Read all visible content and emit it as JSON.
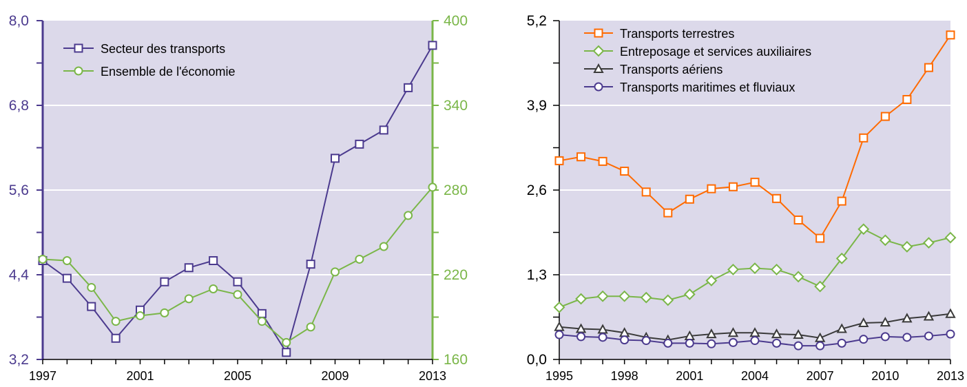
{
  "chart_data": [
    {
      "type": "line",
      "title": "",
      "xlabel": "",
      "x": [
        1997,
        1998,
        1999,
        2000,
        2001,
        2002,
        2003,
        2004,
        2005,
        2006,
        2007,
        2008,
        2009,
        2010,
        2011,
        2012,
        2013
      ],
      "x_ticks": [
        "1997",
        "2001",
        "2005",
        "2009",
        "2013"
      ],
      "ylim_left": [
        3.2,
        8.0
      ],
      "ylim_right": [
        160,
        400
      ],
      "y_ticks_left": [
        "3,2",
        "4,4",
        "5,6",
        "6,8",
        "8,0"
      ],
      "y_ticks_right": [
        "160",
        "220",
        "280",
        "340",
        "400"
      ],
      "axis_colors": {
        "left": "#4b3a8e",
        "right": "#7ab648"
      },
      "background": "#dcd9ea",
      "grid": true,
      "legend_position": "top-left",
      "series": [
        {
          "name": "Secteur des transports",
          "axis": "left",
          "marker": "square",
          "color": "#4b3a8e",
          "values": [
            4.6,
            4.35,
            3.95,
            3.5,
            3.9,
            4.3,
            4.5,
            4.6,
            4.3,
            3.85,
            3.3,
            4.55,
            6.05,
            6.25,
            6.45,
            7.05,
            7.65
          ]
        },
        {
          "name": "Ensemble de l'économie",
          "axis": "right",
          "marker": "circle",
          "color": "#7ab648",
          "values": [
            231,
            230,
            211,
            187,
            191,
            193,
            203,
            210,
            206,
            187,
            172,
            183,
            222,
            231,
            240,
            262,
            282
          ]
        }
      ]
    },
    {
      "type": "line",
      "title": "",
      "xlabel": "",
      "x": [
        1995,
        1996,
        1997,
        1998,
        1999,
        2000,
        2001,
        2002,
        2003,
        2004,
        2005,
        2006,
        2007,
        2008,
        2009,
        2010,
        2011,
        2012,
        2013
      ],
      "x_ticks": [
        "1995",
        "1998",
        "2001",
        "2004",
        "2007",
        "2010",
        "2013"
      ],
      "ylim": [
        0,
        5.2
      ],
      "y_ticks": [
        "0,0",
        "1,3",
        "2,6",
        "3,9",
        "5,2"
      ],
      "background": "#dcd9ea",
      "grid": true,
      "legend_position": "top-left",
      "series": [
        {
          "name": "Transports terrestres",
          "marker": "square",
          "color": "#ff6a00",
          "values": [
            3.05,
            3.11,
            3.04,
            2.89,
            2.57,
            2.25,
            2.46,
            2.62,
            2.65,
            2.72,
            2.47,
            2.14,
            1.86,
            2.43,
            3.4,
            3.73,
            3.99,
            4.48,
            4.98
          ]
        },
        {
          "name": "Entreposage et services auxiliaires",
          "marker": "diamond",
          "color": "#7ab648",
          "values": [
            0.8,
            0.93,
            0.97,
            0.97,
            0.95,
            0.91,
            1.0,
            1.21,
            1.38,
            1.4,
            1.38,
            1.27,
            1.12,
            1.55,
            2.0,
            1.83,
            1.73,
            1.79,
            1.87
          ]
        },
        {
          "name": "Transports aériens",
          "marker": "triangle",
          "color": "#3a3a3a",
          "values": [
            0.5,
            0.47,
            0.46,
            0.41,
            0.34,
            0.3,
            0.36,
            0.39,
            0.41,
            0.41,
            0.39,
            0.38,
            0.33,
            0.47,
            0.56,
            0.57,
            0.63,
            0.66,
            0.7
          ]
        },
        {
          "name": "Transports maritimes et fluviaux",
          "marker": "circle",
          "color": "#4b3a8e",
          "values": [
            0.38,
            0.35,
            0.34,
            0.3,
            0.29,
            0.25,
            0.25,
            0.24,
            0.26,
            0.29,
            0.25,
            0.21,
            0.21,
            0.25,
            0.31,
            0.35,
            0.34,
            0.36,
            0.39
          ]
        }
      ]
    }
  ]
}
